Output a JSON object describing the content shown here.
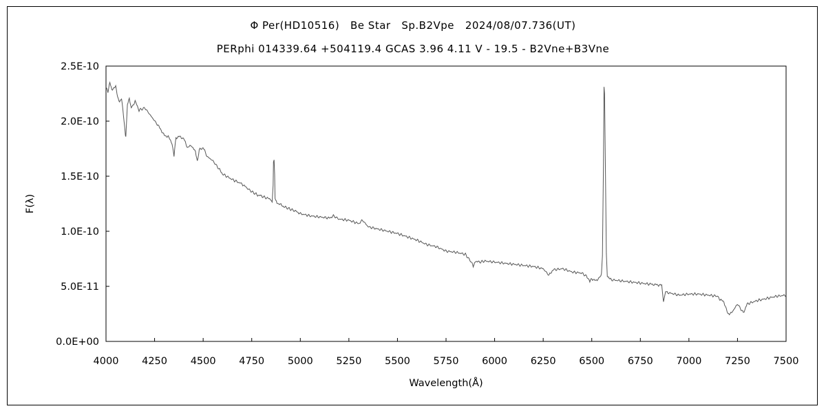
{
  "chart_data": {
    "type": "line",
    "title": "Φ Per(HD10516)   Be Star   Sp.B2Vpe   2024/08/07.736(UT)",
    "subtitle": "PERphi 014339.64 +504119.4 GCAS 3.96 4.11 V - 19.5 - B2Vne+B3Vne",
    "xlabel": "Wavelength(Å)",
    "ylabel": "F(λ)",
    "xlim": [
      4000,
      7500
    ],
    "ylim": [
      0,
      2.5e-10
    ],
    "x_ticks": [
      "4000",
      "4250",
      "4500",
      "4750",
      "5000",
      "5250",
      "5500",
      "5750",
      "6000",
      "6250",
      "6500",
      "6750",
      "7000",
      "7250",
      "7500"
    ],
    "y_ticks": [
      "0.0E+00",
      "5.0E-11",
      "1.0E-10",
      "1.5E-10",
      "2.0E-10",
      "2.5E-10"
    ],
    "grid": false,
    "legend": "none",
    "series": [
      {
        "color": "#555555",
        "x": [
          4000,
          4010,
          4020,
          4030,
          4040,
          4050,
          4060,
          4070,
          4080,
          4090,
          4100,
          4102,
          4110,
          4120,
          4130,
          4150,
          4170,
          4200,
          4230,
          4260,
          4280,
          4300,
          4320,
          4340,
          4350,
          4360,
          4380,
          4400,
          4420,
          4440,
          4460,
          4470,
          4480,
          4500,
          4520,
          4550,
          4580,
          4600,
          4650,
          4700,
          4720,
          4750,
          4780,
          4800,
          4830,
          4850,
          4855,
          4860,
          4862,
          4865,
          4868,
          4870,
          4880,
          4900,
          4920,
          4950,
          4980,
          5000,
          5050,
          5100,
          5150,
          5170,
          5200,
          5250,
          5300,
          5320,
          5350,
          5400,
          5450,
          5500,
          5550,
          5600,
          5650,
          5700,
          5750,
          5800,
          5850,
          5880,
          5890,
          5900,
          5920,
          5950,
          6000,
          6050,
          6100,
          6150,
          6200,
          6250,
          6280,
          6300,
          6350,
          6400,
          6450,
          6480,
          6490,
          6500,
          6520,
          6540,
          6550,
          6555,
          6560,
          6563,
          6566,
          6570,
          6575,
          6580,
          6590,
          6600,
          6650,
          6700,
          6750,
          6800,
          6860,
          6869,
          6880,
          6900,
          6950,
          7000,
          7050,
          7100,
          7150,
          7160,
          7180,
          7200,
          7220,
          7250,
          7280,
          7300,
          7350,
          7400,
          7450,
          7500
        ],
        "values": [
          2.32e-10,
          2.26e-10,
          2.35e-10,
          2.29e-10,
          2.3e-10,
          2.31e-10,
          2.22e-10,
          2.18e-10,
          2.2e-10,
          2.05e-10,
          1.88e-10,
          1.85e-10,
          2.15e-10,
          2.2e-10,
          2.12e-10,
          2.18e-10,
          2.1e-10,
          2.12e-10,
          2.05e-10,
          1.98e-10,
          1.93e-10,
          1.87e-10,
          1.86e-10,
          1.8e-10,
          1.68e-10,
          1.85e-10,
          1.86e-10,
          1.84e-10,
          1.76e-10,
          1.78e-10,
          1.72e-10,
          1.64e-10,
          1.74e-10,
          1.76e-10,
          1.68e-10,
          1.64e-10,
          1.57e-10,
          1.52e-10,
          1.47e-10,
          1.43e-10,
          1.4e-10,
          1.36e-10,
          1.33e-10,
          1.32e-10,
          1.3e-10,
          1.29e-10,
          1.27e-10,
          1.42e-10,
          1.63e-10,
          1.66e-10,
          1.52e-10,
          1.3e-10,
          1.26e-10,
          1.24e-10,
          1.22e-10,
          1.2e-10,
          1.18e-10,
          1.16e-10,
          1.14e-10,
          1.13e-10,
          1.12e-10,
          1.14e-10,
          1.11e-10,
          1.1e-10,
          1.07e-10,
          1.1e-10,
          1.04e-10,
          1.02e-10,
          1e-10,
          9.8e-11,
          9.5e-11,
          9.2e-11,
          8.8e-11,
          8.6e-11,
          8.2e-11,
          8.1e-11,
          7.9e-11,
          7.2e-11,
          6.8e-11,
          7.3e-11,
          7.2e-11,
          7.3e-11,
          7.2e-11,
          7.1e-11,
          7e-11,
          6.9e-11,
          6.8e-11,
          6.6e-11,
          6e-11,
          6.5e-11,
          6.6e-11,
          6.3e-11,
          6.2e-11,
          5.8e-11,
          5.4e-11,
          5.7e-11,
          5.5e-11,
          5.8e-11,
          6.2e-11,
          7.8e-11,
          1.6e-10,
          2.3e-10,
          2.25e-10,
          1.6e-10,
          8e-11,
          6e-11,
          5.7e-11,
          5.6e-11,
          5.5e-11,
          5.4e-11,
          5.3e-11,
          5.2e-11,
          5.1e-11,
          3.6e-11,
          4.5e-11,
          4.4e-11,
          4.2e-11,
          4.3e-11,
          4.3e-11,
          4.2e-11,
          4.1e-11,
          3.8e-11,
          3.6e-11,
          2.5e-11,
          2.6e-11,
          3.4e-11,
          2.6e-11,
          3.4e-11,
          3.7e-11,
          3.9e-11,
          4.1e-11,
          4.2e-11
        ]
      }
    ]
  }
}
